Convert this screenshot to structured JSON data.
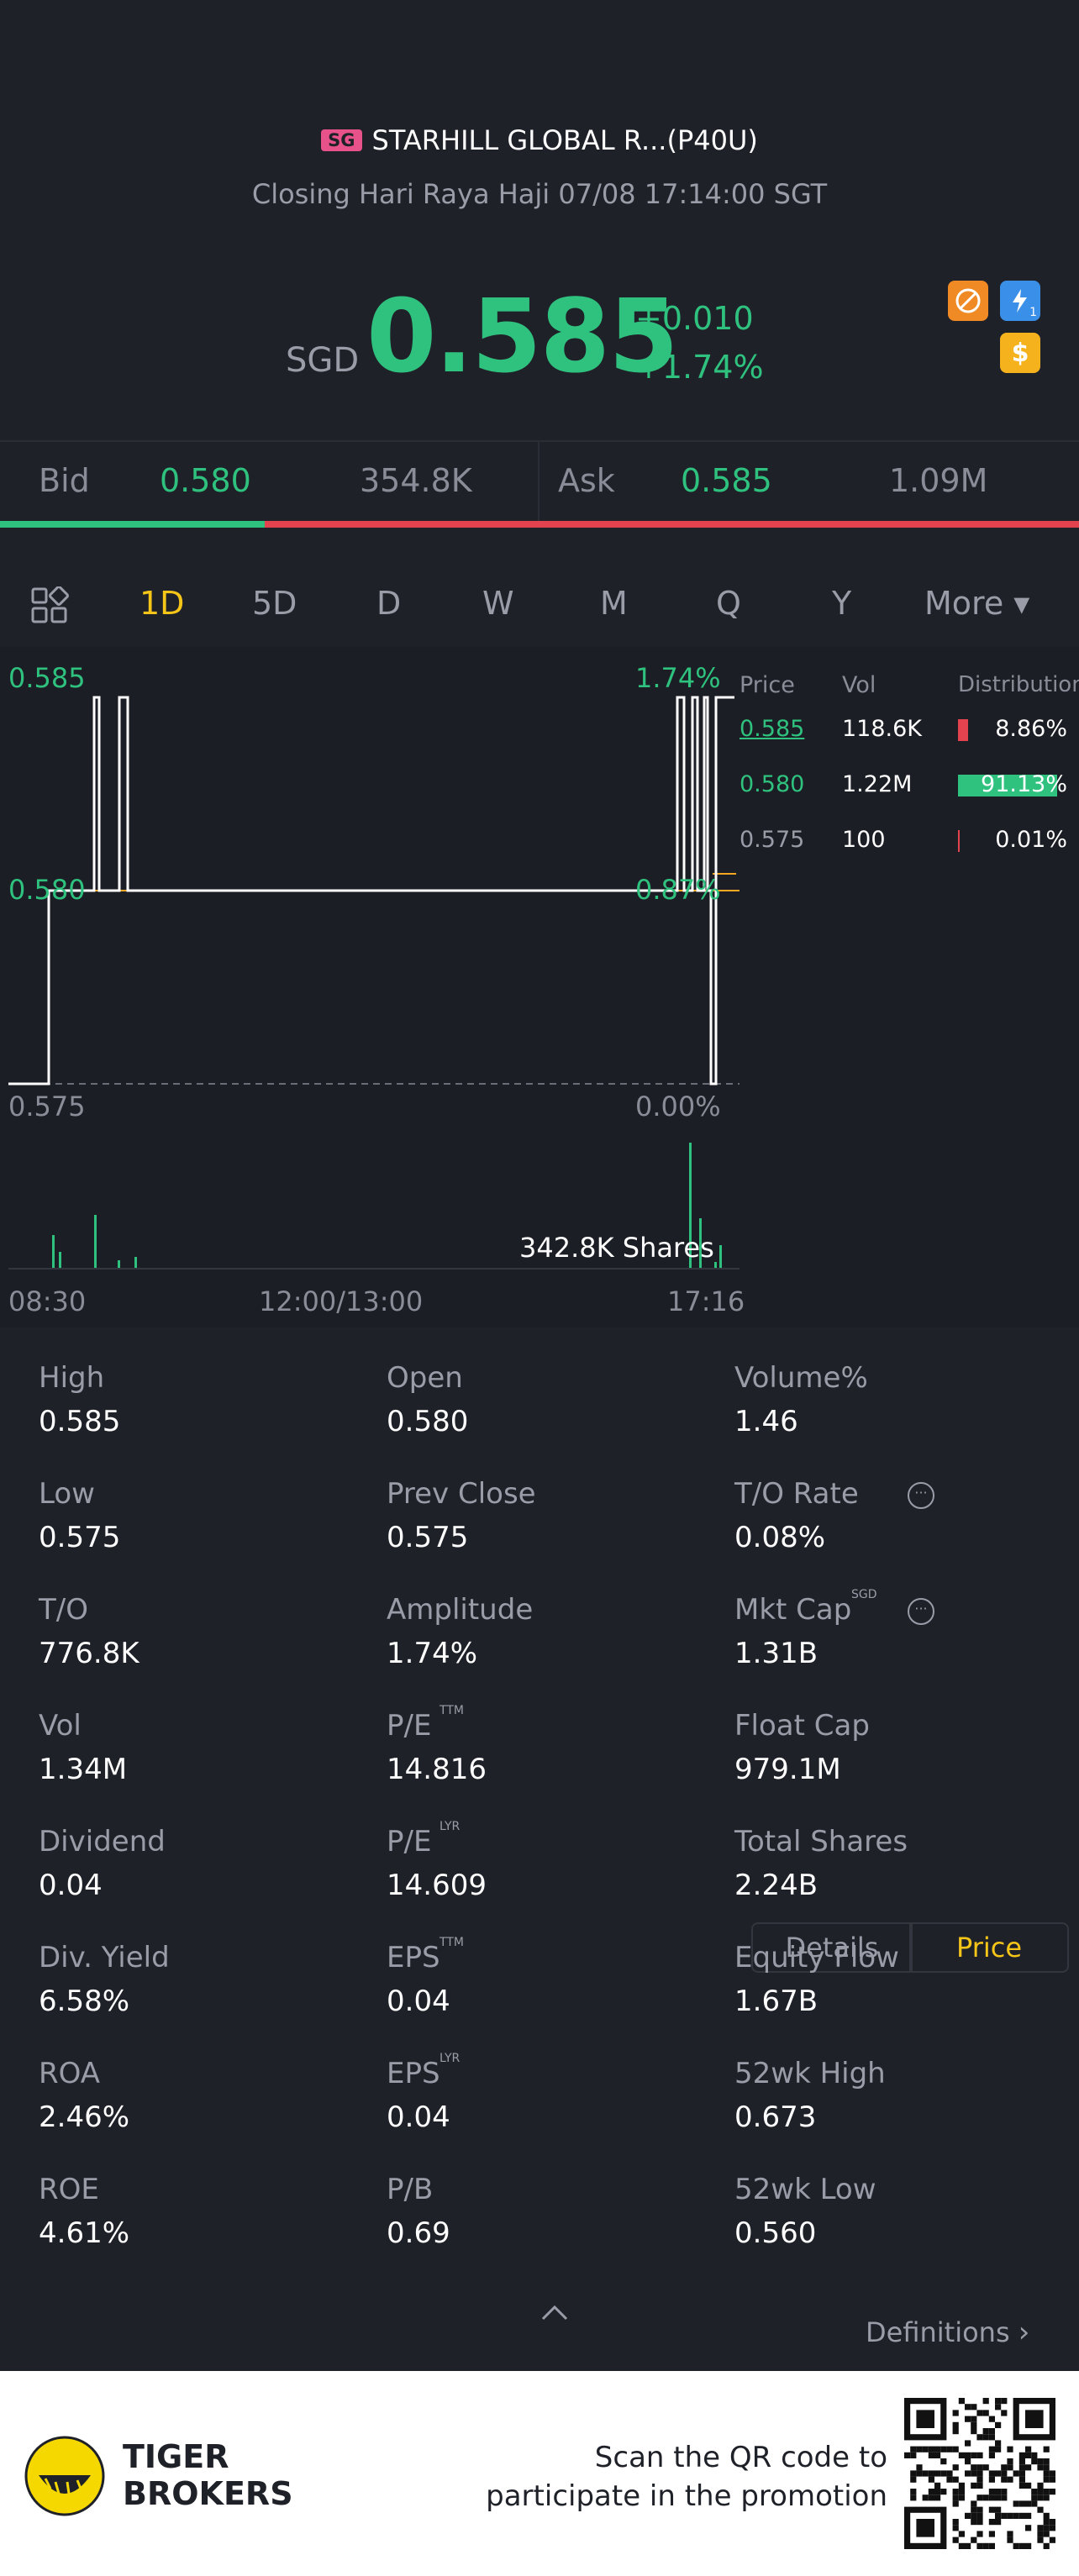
{
  "header": {
    "market_badge": "SG",
    "name": "STARHILL GLOBAL R...(P40U)",
    "status": "Closing Hari Raya Haji 07/08 17:14:00 SGT",
    "currency": "SGD",
    "price": "0.585",
    "change": "+0.010",
    "change_pct": "+1.74%",
    "icons": [
      "no-short-icon",
      "flash-icon",
      "dollar-icon"
    ],
    "flash_sub": "1"
  },
  "bidask": {
    "bid_label": "Bid",
    "bid_price": "0.580",
    "bid_vol": "354.8K",
    "ask_label": "Ask",
    "ask_price": "0.585",
    "ask_vol": "1.09M",
    "bid_ratio": 0.245
  },
  "tabs": [
    "1D",
    "5D",
    "D",
    "W",
    "M",
    "Q",
    "Y",
    "More ▾"
  ],
  "active_tab": "1D",
  "chart": {
    "y_top": "0.585",
    "y_mid": "0.580",
    "y_bot": "0.575",
    "pct_top": "1.74%",
    "pct_mid": "0.87%",
    "pct_bot": "0.00%",
    "volume_label": "342.8K Shares",
    "x_start": "08:30",
    "x_mid": "12:00/13:00",
    "x_end": "17:16"
  },
  "chart_data": {
    "type": "line",
    "x": [
      "08:30",
      "09:00",
      "09:30",
      "10:00",
      "10:30",
      "11:00",
      "11:30",
      "12:00/13:00",
      "13:30",
      "14:00",
      "14:30",
      "15:00",
      "15:30",
      "16:00",
      "16:30",
      "17:00",
      "17:16"
    ],
    "series": [
      {
        "values": [
          0.575,
          0.58,
          0.58,
          0.58,
          0.58,
          0.58,
          0.58,
          0.58,
          0.58,
          0.58,
          0.58,
          0.58,
          0.58,
          0.58,
          0.58,
          0.58,
          0.585
        ]
      }
    ],
    "ylim": [
      0.575,
      0.585
    ]
  },
  "distribution": {
    "headers": [
      "Price",
      "Vol",
      "Distribution"
    ],
    "rows": [
      {
        "price": "0.585",
        "vol": "118.6K",
        "pct": "8.86%",
        "fraction": 0.0886,
        "color": "#e2434f"
      },
      {
        "price": "0.580",
        "vol": "1.22M",
        "pct": "91.13%",
        "fraction": 0.9113,
        "color": "#2fc27f"
      },
      {
        "price": "0.575",
        "vol": "100",
        "pct": "0.01%",
        "fraction": 0.0001,
        "color": "#e2434f"
      }
    ]
  },
  "toggle": {
    "details": "Details",
    "price": "Price"
  },
  "stats": [
    {
      "label": "High",
      "value": "0.585"
    },
    {
      "label": "Open",
      "value": "0.580"
    },
    {
      "label": "Volume%",
      "value": "1.46"
    },
    {
      "label": "Low",
      "value": "0.575"
    },
    {
      "label": "Prev Close",
      "value": "0.575"
    },
    {
      "label": "T/O Rate",
      "value": "0.08%"
    },
    {
      "label": "T/O",
      "value": "776.8K"
    },
    {
      "label": "Amplitude",
      "value": "1.74%"
    },
    {
      "label": "Mkt Cap",
      "value": "1.31B",
      "sup": "SGD"
    },
    {
      "label": "Vol",
      "value": "1.34M"
    },
    {
      "label": "P/E",
      "value": "14.816",
      "sup": "TTM"
    },
    {
      "label": "Float Cap",
      "value": "979.1M"
    },
    {
      "label": "Dividend",
      "value": "0.04"
    },
    {
      "label": "P/E",
      "value": "14.609",
      "sup": "LYR"
    },
    {
      "label": "Total Shares",
      "value": "2.24B"
    },
    {
      "label": "Div. Yield",
      "value": "6.58%"
    },
    {
      "label": "EPS",
      "value": "0.04",
      "sup": "TTM"
    },
    {
      "label": "Equity Flow",
      "value": "1.67B"
    },
    {
      "label": "ROA",
      "value": "2.46%"
    },
    {
      "label": "EPS",
      "value": "0.04",
      "sup": "LYR"
    },
    {
      "label": "52wk High",
      "value": "0.673"
    },
    {
      "label": "ROE",
      "value": "4.61%"
    },
    {
      "label": "P/B",
      "value": "0.69"
    },
    {
      "label": "52wk Low",
      "value": "0.560"
    }
  ],
  "definitions": "Definitions",
  "footer": {
    "brand_line1": "TIGER",
    "brand_line2": "BROKERS",
    "promo_line1": "Scan the QR code to",
    "promo_line2": "participate in the promotion"
  }
}
